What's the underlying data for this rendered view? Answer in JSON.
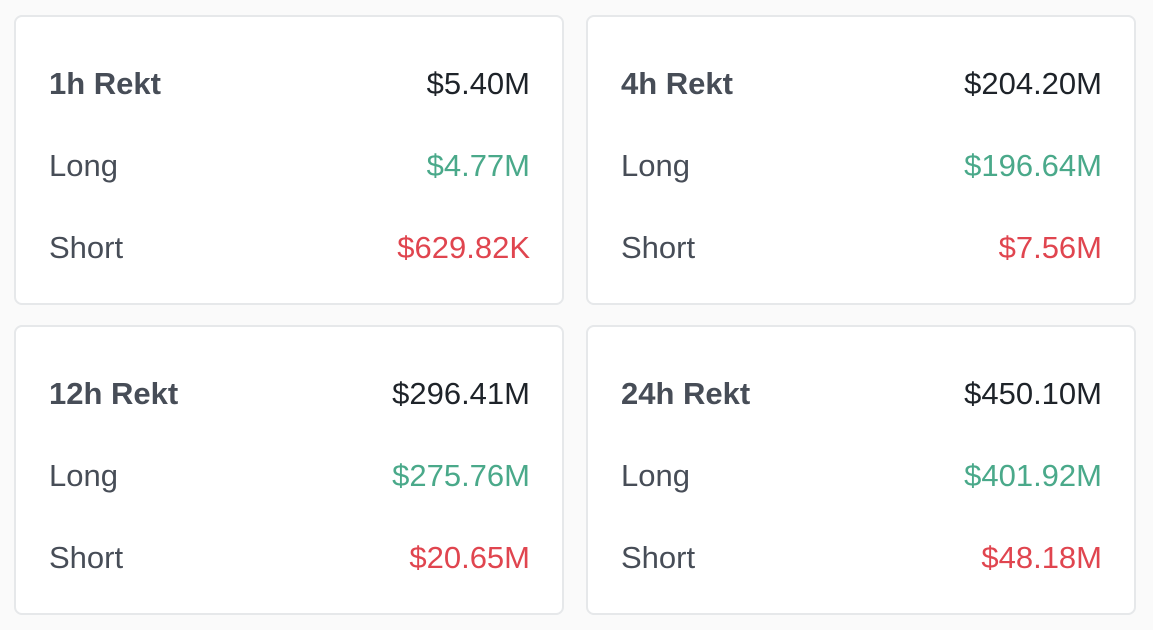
{
  "colors": {
    "long": "#4aa98a",
    "short": "#e0454f",
    "label": "#474d57",
    "value": "#1e2329"
  },
  "cards": [
    {
      "title": "1h Rekt",
      "total": "$5.40M",
      "long_label": "Long",
      "long": "$4.77M",
      "short_label": "Short",
      "short": "$629.82K"
    },
    {
      "title": "4h Rekt",
      "total": "$204.20M",
      "long_label": "Long",
      "long": "$196.64M",
      "short_label": "Short",
      "short": "$7.56M"
    },
    {
      "title": "12h Rekt",
      "total": "$296.41M",
      "long_label": "Long",
      "long": "$275.76M",
      "short_label": "Short",
      "short": "$20.65M"
    },
    {
      "title": "24h Rekt",
      "total": "$450.10M",
      "long_label": "Long",
      "long": "$401.92M",
      "short_label": "Short",
      "short": "$48.18M"
    }
  ]
}
